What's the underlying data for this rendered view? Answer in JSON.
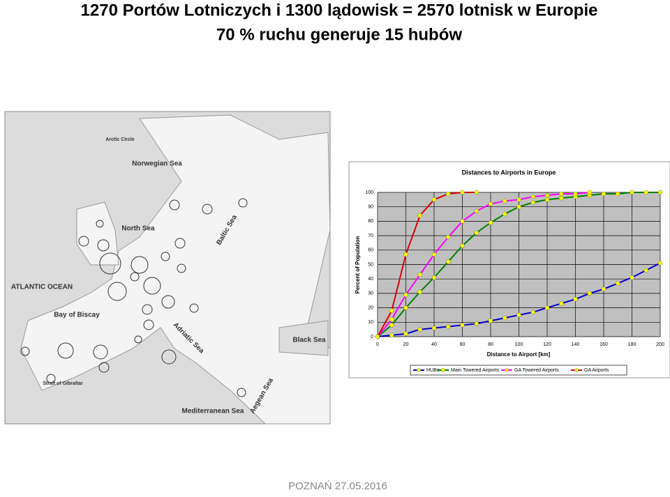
{
  "header": {
    "title": "1270 Portów Lotniczych i 1300 lądowisk = 2570 lotnisk w Europie",
    "subtitle": "70 % ruchu generuje 15 hubów"
  },
  "map": {
    "labels": [
      "Norwegian Sea",
      "North Sea",
      "ATLANTIC OCEAN",
      "Bay of Biscay",
      "Baltic Sea",
      "Adriatic Sea",
      "Black Sea",
      "Aegean Sea",
      "Mediterranean Sea",
      "Strait of Gibraltar",
      "Arctic Circle"
    ]
  },
  "chart_data": {
    "type": "line",
    "title": "Distances to Airports in Europe",
    "x_label": "Distance to Airport [km]",
    "y_label": "Percent of Population",
    "x": [
      0,
      10,
      20,
      30,
      40,
      50,
      60,
      70,
      80,
      90,
      100,
      110,
      120,
      130,
      140,
      150,
      160,
      170,
      180,
      190,
      200
    ],
    "series": [
      {
        "name": "HUBs",
        "color": "#0000cc",
        "values": [
          0,
          1,
          2,
          5,
          6,
          7,
          8,
          9,
          11,
          13,
          15,
          17,
          20,
          23,
          26,
          30,
          33,
          37,
          41,
          46,
          51
        ]
      },
      {
        "name": "Main Towered Airports",
        "color": "#008000",
        "values": [
          0,
          8,
          20,
          31,
          41,
          52,
          63,
          72,
          79,
          85,
          90,
          93,
          95,
          96,
          97,
          98,
          99,
          99,
          100,
          100,
          100
        ]
      },
      {
        "name": "GA Towered Airports",
        "color": "#ff00ff",
        "values": [
          0,
          12,
          29,
          43,
          57,
          69,
          80,
          87,
          92,
          94,
          95,
          97,
          98,
          99,
          99,
          100,
          null,
          null,
          null,
          null,
          null
        ]
      },
      {
        "name": "GA Airports",
        "color": "#dd0000",
        "values": [
          0,
          18,
          57,
          84,
          95,
          99,
          100,
          100,
          null,
          null,
          null,
          null,
          null,
          null,
          null,
          null,
          null,
          null,
          null,
          null,
          null
        ]
      }
    ],
    "xlim": [
      0,
      200
    ],
    "ylim": [
      0,
      100
    ],
    "xticks": [
      0,
      20,
      40,
      60,
      80,
      100,
      120,
      140,
      160,
      180,
      200
    ],
    "yticks": [
      0,
      10,
      20,
      30,
      40,
      50,
      60,
      70,
      80,
      90,
      100
    ],
    "grid": true,
    "legend": "bottom"
  },
  "footer": {
    "text": "POZNAŃ 27.05.2016"
  }
}
